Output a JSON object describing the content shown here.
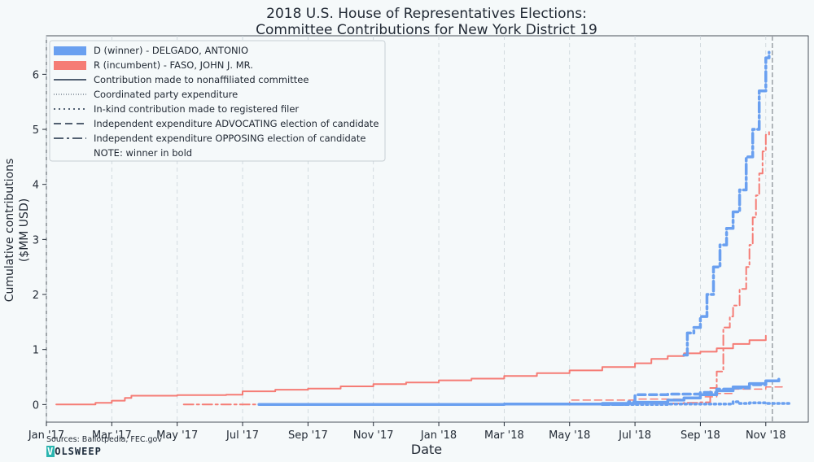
{
  "chart_data": {
    "type": "line",
    "title_lines": [
      "2018 U.S. House of Representatives Elections:",
      "Committee Contributions for New York District 19"
    ],
    "xlabel": "Date",
    "ylabel_lines": [
      "Cumulative contributions",
      "($MM USD)"
    ],
    "x_ticks": [
      "Jan '17",
      "Mar '17",
      "May '17",
      "Jul '17",
      "Sep '17",
      "Nov '17",
      "Jan '18",
      "Mar '18",
      "May '18",
      "Jul '18",
      "Sep '18",
      "Nov '18"
    ],
    "y_ticks": [
      "0",
      "1",
      "2",
      "3",
      "4",
      "5",
      "6"
    ],
    "ylim": [
      -0.32,
      6.7
    ],
    "xlim_months": [
      0,
      23.3
    ],
    "grid": "vertical dashed",
    "election_day_marker": 22.2,
    "legend": {
      "placement": "top-left",
      "items": [
        {
          "label": "D (winner) - DELGADO, ANTONIO",
          "kind": "patch",
          "color": "#6aa0f0"
        },
        {
          "label": "R (incumbent) - FASO, JOHN J. MR.",
          "kind": "patch",
          "color": "#f57c75"
        },
        {
          "label": "Contribution made to nonaffiliated committee",
          "kind": "line",
          "dash": "solid"
        },
        {
          "label": "Coordinated party expenditure",
          "kind": "line",
          "dash": "fine-dotted"
        },
        {
          "label": "In-kind contribution made to registered filer",
          "kind": "line",
          "dash": "dotted"
        },
        {
          "label": "Independent expenditure ADVOCATING election of candidate",
          "kind": "line",
          "dash": "dashed"
        },
        {
          "label": "Independent expenditure OPPOSING election of candidate",
          "kind": "line",
          "dash": "dashdot"
        },
        {
          "label": "NOTE: winner in bold",
          "kind": "none"
        }
      ]
    },
    "series": [
      {
        "name": "R (incumbent) - FASO, JOHN J. MR.",
        "type": "Contribution made to nonaffiliated committee",
        "color": "#f57c75",
        "dash": "solid",
        "width": 2,
        "x": [
          0.3,
          1.5,
          2.0,
          2.4,
          2.6,
          4.0,
          5.5,
          6.0,
          7.0,
          8.0,
          9.0,
          10.0,
          11.0,
          12.0,
          13.0,
          14.0,
          15.0,
          16.0,
          17.0,
          18.0,
          18.5,
          19.0,
          19.5,
          20.0,
          20.5,
          21.0,
          21.5,
          22.0
        ],
        "y": [
          0.0,
          0.03,
          0.07,
          0.12,
          0.16,
          0.17,
          0.18,
          0.24,
          0.27,
          0.29,
          0.33,
          0.37,
          0.4,
          0.44,
          0.47,
          0.52,
          0.57,
          0.62,
          0.68,
          0.75,
          0.83,
          0.88,
          0.93,
          0.96,
          1.02,
          1.1,
          1.17,
          1.25
        ]
      },
      {
        "name": "R (incumbent) - FASO, JOHN J. MR.",
        "type": "Independent expenditure OPPOSING election of candidate",
        "color": "#f57c75",
        "dash": "dashdot",
        "width": 2,
        "x": [
          4.2,
          8.0,
          12.0,
          16.0,
          19.5,
          20.0,
          20.3,
          20.5,
          20.7,
          20.9,
          21.0,
          21.2,
          21.4,
          21.5,
          21.6,
          21.7,
          21.8,
          21.9,
          22.0,
          22.1
        ],
        "y": [
          0.0,
          0.0,
          0.01,
          0.02,
          0.03,
          0.04,
          0.3,
          0.6,
          1.4,
          1.6,
          1.8,
          2.1,
          2.5,
          2.9,
          3.4,
          3.8,
          4.2,
          4.6,
          4.9,
          5.0
        ]
      },
      {
        "name": "R (incumbent) - FASO, JOHN J. MR.",
        "type": "Independent expenditure ADVOCATING election of candidate",
        "color": "#f57c75",
        "dash": "dashed",
        "width": 1.5,
        "x": [
          15.5,
          16.0,
          18.0,
          19.5,
          20.0,
          20.5,
          21.0,
          22.0,
          22.5
        ],
        "y": [
          0.0,
          0.08,
          0.1,
          0.12,
          0.14,
          0.2,
          0.28,
          0.32,
          0.33
        ]
      },
      {
        "name": "D (winner) - DELGADO, ANTONIO",
        "type": "Contribution made to nonaffiliated committee",
        "color": "#6aa0f0",
        "dash": "solid",
        "width": 3.5,
        "x": [
          6.5,
          10.0,
          14.0,
          17.0,
          18.0,
          19.0,
          19.5,
          20.0,
          20.5,
          21.0,
          21.5,
          22.0,
          22.4
        ],
        "y": [
          0.0,
          0.0,
          0.01,
          0.02,
          0.04,
          0.08,
          0.12,
          0.18,
          0.25,
          0.32,
          0.38,
          0.43,
          0.46
        ]
      },
      {
        "name": "D (winner) - DELGADO, ANTONIO",
        "type": "In-kind contribution made to registered filer",
        "color": "#6aa0f0",
        "dash": "dotted",
        "width": 3.5,
        "x": [
          17.0,
          19.0,
          20.5,
          21.0,
          21.2,
          21.5,
          22.0,
          22.8
        ],
        "y": [
          0.0,
          0.01,
          0.01,
          0.05,
          0.02,
          0.03,
          0.02,
          0.02
        ]
      },
      {
        "name": "D (winner) - DELGADO, ANTONIO",
        "type": "Independent expenditure ADVOCATING election of candidate",
        "color": "#6aa0f0",
        "dash": "dashed",
        "width": 3.5,
        "x": [
          17.0,
          17.8,
          18.0,
          19.0,
          20.0,
          20.5,
          21.0,
          21.5,
          22.0
        ],
        "y": [
          0.0,
          0.05,
          0.18,
          0.19,
          0.22,
          0.28,
          0.3,
          0.36,
          0.42
        ]
      },
      {
        "name": "D (winner) - DELGADO, ANTONIO",
        "type": "Independent expenditure OPPOSING election of candidate",
        "color": "#6aa0f0",
        "dash": "dashdot",
        "width": 3.5,
        "x": [
          19.5,
          19.6,
          19.8,
          20.0,
          20.2,
          20.4,
          20.6,
          20.8,
          21.0,
          21.2,
          21.4,
          21.6,
          21.8,
          22.0,
          22.1
        ],
        "y": [
          0.9,
          1.3,
          1.4,
          1.6,
          2.0,
          2.5,
          2.9,
          3.2,
          3.5,
          3.9,
          4.5,
          5.0,
          5.7,
          6.3,
          6.4
        ]
      }
    ],
    "sources": "Sources: Ballotpedia, FEC.gov",
    "logo": "VOLSWEEP"
  }
}
